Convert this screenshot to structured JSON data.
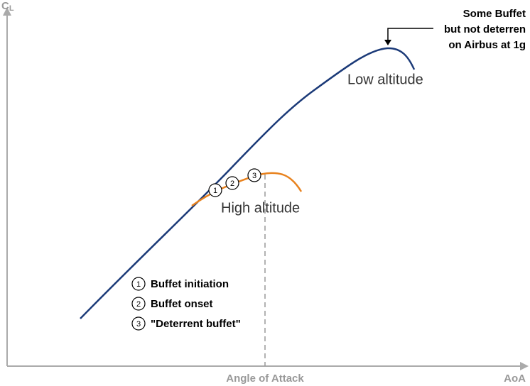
{
  "y_axis": {
    "label": "C",
    "subscript": "L"
  },
  "x_axis": {
    "label": "AoA",
    "caption": "Angle of Attack"
  },
  "annotation": {
    "lines": [
      "Some Buffet",
      "but not deterren",
      "on Airbus at 1g"
    ]
  },
  "curves": [
    {
      "label": "Low altitude"
    },
    {
      "label": "High altitude"
    }
  ],
  "markers": [
    "1",
    "2",
    "3"
  ],
  "legend": [
    {
      "marker": "1",
      "text": "Buffet initiation"
    },
    {
      "marker": "2",
      "text": "Buffet onset"
    },
    {
      "marker": "3",
      "text": "\"Deterrent buffet\""
    }
  ]
}
